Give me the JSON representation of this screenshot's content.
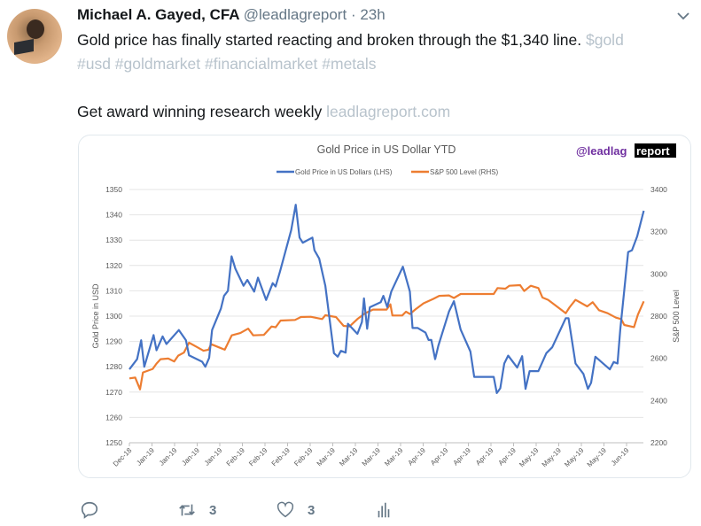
{
  "tweet": {
    "author_name": "Michael A. Gayed, CFA",
    "handle": "@leadlagreport",
    "separator": "·",
    "time": "23h",
    "text_line1": "Gold price has finally started reacting and broken through the $1,340 line.",
    "cashtag": "$gold",
    "hashtags": "#usd #goldmarket #financialmarket #metals",
    "text_line2": "Get award winning research weekly",
    "link": "leadlagreport.com",
    "menu_icon": "chevron-down-icon"
  },
  "actions": {
    "reply_icon": "reply-icon",
    "retweet_icon": "retweet-icon",
    "retweet_count": "3",
    "like_icon": "heart-icon",
    "like_count": "3",
    "analytics_icon": "analytics-icon"
  },
  "colors": {
    "gold": "#4472c4",
    "sp500": "#ed7d31",
    "muted_link": "#b8c3cc",
    "logo_purple": "#7030a0"
  },
  "chart_data": {
    "type": "line",
    "title": "Gold Price in US Dollar YTD",
    "logo": {
      "part1": "@leadlag",
      "part2": "report"
    },
    "ylabel": "Gold Price in USD",
    "y2label": "S&P 500 Level",
    "ylim": [
      1250,
      1350
    ],
    "y2lim": [
      2200,
      3400
    ],
    "yticks": [
      1250,
      1260,
      1270,
      1280,
      1290,
      1300,
      1310,
      1320,
      1330,
      1340,
      1350
    ],
    "y2ticks": [
      2200,
      2400,
      2600,
      2800,
      3000,
      3200,
      3400
    ],
    "grid": true,
    "legend_position": "top",
    "categories": [
      "Dec-18",
      "Jan-19",
      "Jan-19",
      "Jan-19",
      "Jan-19",
      "Feb-19",
      "Feb-19",
      "Feb-19",
      "Feb-19",
      "Mar-19",
      "Mar-19",
      "Mar-19",
      "Mar-19",
      "Apr-19",
      "Apr-19",
      "Apr-19",
      "Apr-19",
      "Apr-19",
      "May-19",
      "May-19",
      "May-19",
      "May-19",
      "Jun-19"
    ],
    "series": [
      {
        "name": "Gold Price in US Dollars (LHS)",
        "axis": "left",
        "points": [
          [
            0,
            1279
          ],
          [
            0.34,
            1283
          ],
          [
            0.52,
            1290.5
          ],
          [
            0.66,
            1280
          ],
          [
            1.07,
            1292.5
          ],
          [
            1.2,
            1286.5
          ],
          [
            1.47,
            1292
          ],
          [
            1.64,
            1289
          ],
          [
            2.19,
            1294.5
          ],
          [
            2.5,
            1290.5
          ],
          [
            2.64,
            1284.5
          ],
          [
            3.22,
            1282
          ],
          [
            3.36,
            1280
          ],
          [
            3.53,
            1283.5
          ],
          [
            3.66,
            1294.5
          ],
          [
            4.05,
            1303
          ],
          [
            4.19,
            1308
          ],
          [
            4.36,
            1310
          ],
          [
            4.52,
            1323.6
          ],
          [
            4.69,
            1318.7
          ],
          [
            5.05,
            1312
          ],
          [
            5.22,
            1314.3
          ],
          [
            5.52,
            1309.7
          ],
          [
            5.69,
            1315.2
          ],
          [
            6.05,
            1306.4
          ],
          [
            6.34,
            1313
          ],
          [
            6.47,
            1311.7
          ],
          [
            6.67,
            1317.8
          ],
          [
            7.16,
            1334
          ],
          [
            7.36,
            1344
          ],
          [
            7.53,
            1331
          ],
          [
            7.67,
            1329
          ],
          [
            8.1,
            1331
          ],
          [
            8.19,
            1326
          ],
          [
            8.4,
            1322.7
          ],
          [
            8.67,
            1312
          ],
          [
            9.05,
            1285.4
          ],
          [
            9.22,
            1284
          ],
          [
            9.36,
            1286.3
          ],
          [
            9.57,
            1285.6
          ],
          [
            9.67,
            1297
          ],
          [
            10.09,
            1293
          ],
          [
            10.29,
            1297.7
          ],
          [
            10.38,
            1307
          ],
          [
            10.52,
            1295
          ],
          [
            10.64,
            1303.5
          ],
          [
            11.12,
            1305.5
          ],
          [
            11.24,
            1308
          ],
          [
            11.41,
            1303.6
          ],
          [
            11.59,
            1309.7
          ],
          [
            12.1,
            1319.5
          ],
          [
            12.41,
            1309.7
          ],
          [
            12.53,
            1295.3
          ],
          [
            12.76,
            1295.3
          ],
          [
            13.1,
            1293.5
          ],
          [
            13.24,
            1290.6
          ],
          [
            13.36,
            1290.6
          ],
          [
            13.53,
            1283
          ],
          [
            13.67,
            1288.3
          ],
          [
            14.14,
            1301.8
          ],
          [
            14.36,
            1305.9
          ],
          [
            14.66,
            1294.7
          ],
          [
            15.09,
            1286
          ],
          [
            15.26,
            1276
          ],
          [
            16.12,
            1276
          ],
          [
            16.26,
            1269.6
          ],
          [
            16.41,
            1271.5
          ],
          [
            16.59,
            1281.3
          ],
          [
            16.76,
            1284.4
          ],
          [
            17.16,
            1279.7
          ],
          [
            17.38,
            1284.2
          ],
          [
            17.53,
            1271.3
          ],
          [
            17.71,
            1278.3
          ],
          [
            18.1,
            1278.3
          ],
          [
            18.45,
            1285.4
          ],
          [
            18.71,
            1287.7
          ],
          [
            19.31,
            1299.2
          ],
          [
            19.43,
            1299.2
          ],
          [
            19.74,
            1281.3
          ],
          [
            20.09,
            1277.2
          ],
          [
            20.29,
            1271.3
          ],
          [
            20.43,
            1273.7
          ],
          [
            20.62,
            1284
          ],
          [
            21.26,
            1279
          ],
          [
            21.43,
            1281.9
          ],
          [
            21.6,
            1281.3
          ],
          [
            21.72,
            1294.7
          ],
          [
            22.07,
            1325.3
          ],
          [
            22.24,
            1326
          ],
          [
            22.47,
            1331.5
          ],
          [
            22.76,
            1341.6
          ]
        ]
      },
      {
        "name": "S&P 500 Level (RHS)",
        "axis": "right",
        "points": [
          [
            0,
            2505
          ],
          [
            0.26,
            2509
          ],
          [
            0.47,
            2453
          ],
          [
            0.6,
            2533
          ],
          [
            1.03,
            2550
          ],
          [
            1.2,
            2575
          ],
          [
            1.38,
            2596
          ],
          [
            1.72,
            2599
          ],
          [
            1.98,
            2585
          ],
          [
            2.16,
            2613
          ],
          [
            2.41,
            2627
          ],
          [
            2.64,
            2674
          ],
          [
            3.02,
            2652
          ],
          [
            3.28,
            2636
          ],
          [
            3.5,
            2641
          ],
          [
            3.62,
            2667
          ],
          [
            3.97,
            2652
          ],
          [
            4.22,
            2641
          ],
          [
            4.53,
            2709
          ],
          [
            4.91,
            2720
          ],
          [
            5.26,
            2741
          ],
          [
            5.48,
            2709
          ],
          [
            5.95,
            2711
          ],
          [
            6.29,
            2751
          ],
          [
            6.47,
            2747
          ],
          [
            6.69,
            2779
          ],
          [
            7.33,
            2782
          ],
          [
            7.59,
            2796
          ],
          [
            8.02,
            2797
          ],
          [
            8.53,
            2786
          ],
          [
            8.67,
            2804
          ],
          [
            9.14,
            2796
          ],
          [
            9.48,
            2754
          ],
          [
            9.74,
            2751
          ],
          [
            10.09,
            2786
          ],
          [
            10.43,
            2814
          ],
          [
            10.78,
            2831
          ],
          [
            11.38,
            2831
          ],
          [
            11.55,
            2856
          ],
          [
            11.64,
            2803
          ],
          [
            12.07,
            2803
          ],
          [
            12.24,
            2821
          ],
          [
            12.41,
            2810
          ],
          [
            12.67,
            2833
          ],
          [
            13.02,
            2861
          ],
          [
            13.45,
            2882
          ],
          [
            13.71,
            2896
          ],
          [
            14.14,
            2898
          ],
          [
            14.36,
            2886
          ],
          [
            14.66,
            2905
          ],
          [
            16.12,
            2905
          ],
          [
            16.29,
            2933
          ],
          [
            16.64,
            2930
          ],
          [
            16.81,
            2944
          ],
          [
            17.29,
            2947
          ],
          [
            17.47,
            2919
          ],
          [
            17.76,
            2944
          ],
          [
            18.1,
            2933
          ],
          [
            18.28,
            2888
          ],
          [
            18.53,
            2877
          ],
          [
            19.31,
            2814
          ],
          [
            19.48,
            2842
          ],
          [
            19.74,
            2877
          ],
          [
            20.26,
            2846
          ],
          [
            20.5,
            2866
          ],
          [
            20.78,
            2828
          ],
          [
            21.16,
            2814
          ],
          [
            21.53,
            2793
          ],
          [
            21.76,
            2786
          ],
          [
            21.9,
            2758
          ],
          [
            22.33,
            2748
          ],
          [
            22.5,
            2807
          ],
          [
            22.76,
            2870
          ]
        ]
      }
    ]
  }
}
